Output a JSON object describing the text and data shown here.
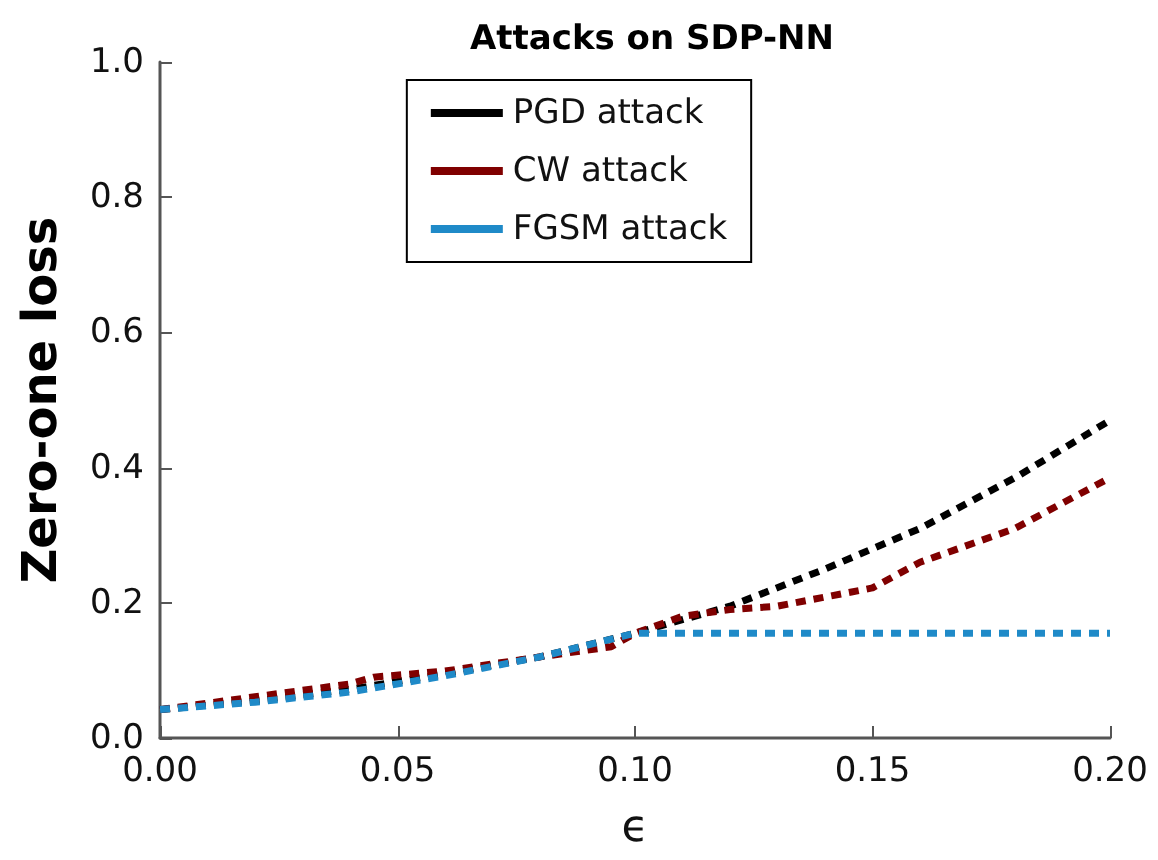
{
  "chart_data": {
    "type": "line",
    "title": "Attacks on SDP-NN",
    "xlabel": "ϵ",
    "ylabel": "Zero-one loss",
    "xlim": [
      0,
      0.2
    ],
    "xticks": [
      {
        "value": 0,
        "label": "0.00"
      },
      {
        "value": 0.05,
        "label": "0.05"
      },
      {
        "value": 0.1,
        "label": "0.10"
      },
      {
        "value": 0.15,
        "label": "0.15"
      },
      {
        "value": 0.2,
        "label": "0.20"
      }
    ],
    "ylim": [
      0,
      1
    ],
    "yticks": [
      {
        "value": 0,
        "label": "0.0"
      },
      {
        "value": 0.2,
        "label": "0.2"
      },
      {
        "value": 0.4,
        "label": "0.4"
      },
      {
        "value": 0.6,
        "label": "0.6"
      },
      {
        "value": 0.8,
        "label": "0.8"
      },
      {
        "value": 1,
        "label": "1.0"
      }
    ],
    "grid": false,
    "legend": "top",
    "marker": "none",
    "line_style": "dashed",
    "series": [
      {
        "name": "PGD attack",
        "color": "#000000",
        "x": [
          0,
          0.02,
          0.04,
          0.06,
          0.08,
          0.1,
          0.12,
          0.14,
          0.16,
          0.18,
          0.2
        ],
        "values": [
          0.042,
          0.055,
          0.072,
          0.095,
          0.12,
          0.155,
          0.195,
          0.25,
          0.31,
          0.385,
          0.47
        ]
      },
      {
        "name": "CW attack",
        "color": "#800000",
        "x": [
          0,
          0.02,
          0.04,
          0.045,
          0.06,
          0.08,
          0.095,
          0.1,
          0.11,
          0.12,
          0.13,
          0.15,
          0.16,
          0.18,
          0.2
        ],
        "values": [
          0.042,
          0.061,
          0.08,
          0.09,
          0.099,
          0.12,
          0.135,
          0.155,
          0.18,
          0.19,
          0.195,
          0.222,
          0.26,
          0.31,
          0.385
        ]
      },
      {
        "name": "FGSM attack",
        "color": "#1f8ac8",
        "x": [
          0,
          0.02,
          0.04,
          0.06,
          0.08,
          0.1,
          0.105,
          0.2
        ],
        "values": [
          0.042,
          0.053,
          0.068,
          0.092,
          0.12,
          0.155,
          0.155,
          0.155
        ]
      }
    ]
  }
}
